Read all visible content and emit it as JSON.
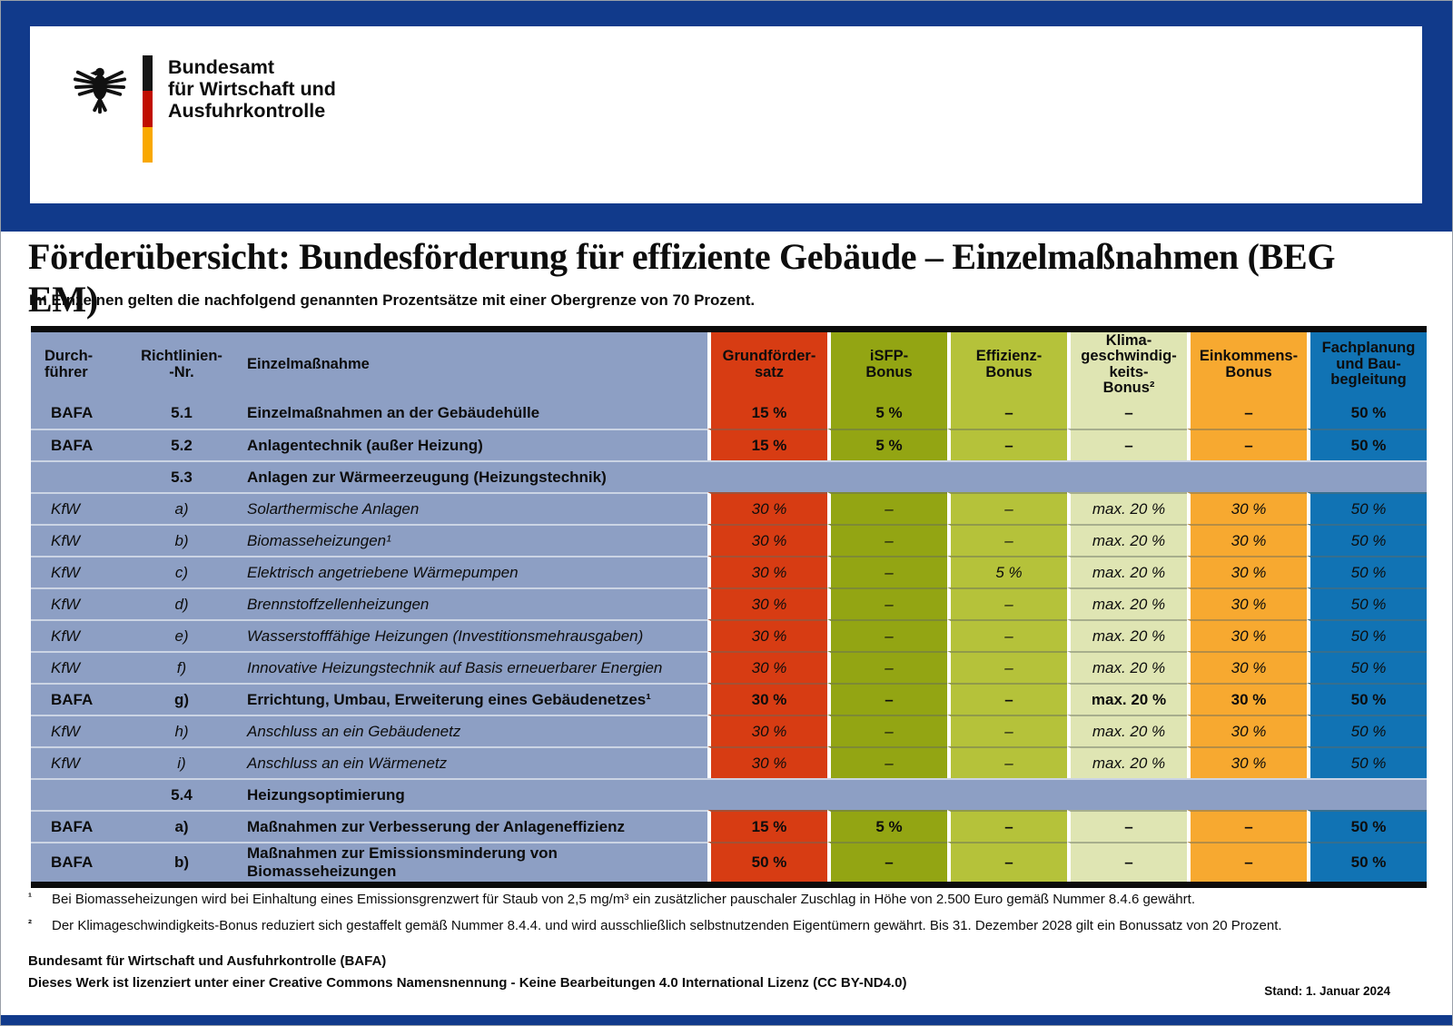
{
  "logo": {
    "line1": "Bundesamt",
    "line2": "für Wirtschaft und",
    "line3": "Ausfuhrkontrolle"
  },
  "title": "Förderübersicht: Bundesförderung für effiziente Gebäude – Einzelmaßnahmen (BEG EM)",
  "subtitle": "Im Einzelnen gelten die nachfolgend genannten Prozentsätze mit einer Obergrenze von 70 Prozent.",
  "colors": {
    "banner_navy": "#113a8b",
    "table_bluegray": "#8d9fc4",
    "grundfoerdersatz_red": "#d73c13",
    "isfp_olive": "#93a513",
    "effizienz_yellowgreen": "#b5c23a",
    "klima_pale": "#dfe5b3",
    "einkommens_orange": "#f7a930",
    "fachplanung_blue": "#1173b4",
    "flag_black": "#161616",
    "flag_red": "#c00d00",
    "flag_gold": "#f9a800"
  },
  "table": {
    "headers": [
      "Durch-\nführer",
      "Richtlinien-\n-Nr.",
      "Einzelmaßnahme",
      "Grundförder-\nsatz",
      "iSFP-\nBonus",
      "Effizienz-\nBonus",
      "Klima-\ngeschwindig-\nkeits-\nBonus²",
      "Einkommens-\nBonus",
      "Fachplanung\nund Bau-\nbegleitung"
    ],
    "rows": [
      {
        "section": false,
        "style": "bold",
        "executor": "BAFA",
        "nr": "5.1",
        "measure": "Einzelmaßnahmen an der Gebäudehülle",
        "values": [
          "15 %",
          "5 %",
          "–",
          "–",
          "–",
          "50 %"
        ]
      },
      {
        "section": false,
        "style": "bold",
        "executor": "BAFA",
        "nr": "5.2",
        "measure": "Anlagentechnik (außer Heizung)",
        "values": [
          "15 %",
          "5 %",
          "–",
          "–",
          "–",
          "50 %"
        ]
      },
      {
        "section": true,
        "style": "bold",
        "executor": "",
        "nr": "5.3",
        "measure": "Anlagen zur Wärmeerzeugung (Heizungstechnik)",
        "values": []
      },
      {
        "section": false,
        "style": "italic",
        "executor": "KfW",
        "nr": "a)",
        "measure": "Solarthermische Anlagen",
        "values": [
          "30 %",
          "–",
          "–",
          "max. 20 %",
          "30 %",
          "50 %"
        ]
      },
      {
        "section": false,
        "style": "italic",
        "executor": "KfW",
        "nr": "b)",
        "measure": "Biomasseheizungen¹",
        "values": [
          "30 %",
          "–",
          "–",
          "max. 20 %",
          "30 %",
          "50 %"
        ]
      },
      {
        "section": false,
        "style": "italic",
        "executor": "KfW",
        "nr": "c)",
        "measure": "Elektrisch angetriebene Wärmepumpen",
        "values": [
          "30 %",
          "–",
          "5 %",
          "max. 20 %",
          "30 %",
          "50 %"
        ]
      },
      {
        "section": false,
        "style": "italic",
        "executor": "KfW",
        "nr": "d)",
        "measure": "Brennstoffzellenheizungen",
        "values": [
          "30 %",
          "–",
          "–",
          "max. 20 %",
          "30 %",
          "50 %"
        ]
      },
      {
        "section": false,
        "style": "italic",
        "executor": "KfW",
        "nr": "e)",
        "measure": "Wasserstofffähige Heizungen (Investitionsmehrausgaben)",
        "values": [
          "30 %",
          "–",
          "–",
          "max. 20 %",
          "30 %",
          "50 %"
        ]
      },
      {
        "section": false,
        "style": "italic",
        "executor": "KfW",
        "nr": "f)",
        "measure": "Innovative Heizungstechnik auf Basis erneuerbarer Energien",
        "values": [
          "30 %",
          "–",
          "–",
          "max. 20 %",
          "30 %",
          "50 %"
        ]
      },
      {
        "section": false,
        "style": "bold",
        "executor": "BAFA",
        "nr": "g)",
        "measure": "Errichtung, Umbau, Erweiterung eines Gebäudenetzes¹",
        "values": [
          "30 %",
          "–",
          "–",
          "max. 20 %",
          "30 %",
          "50 %"
        ]
      },
      {
        "section": false,
        "style": "italic",
        "executor": "KfW",
        "nr": "h)",
        "measure": "Anschluss an ein Gebäudenetz",
        "values": [
          "30 %",
          "–",
          "–",
          "max. 20 %",
          "30 %",
          "50 %"
        ]
      },
      {
        "section": false,
        "style": "italic",
        "executor": "KfW",
        "nr": "i)",
        "measure": "Anschluss an ein Wärmenetz",
        "values": [
          "30 %",
          "–",
          "–",
          "max. 20 %",
          "30 %",
          "50 %"
        ]
      },
      {
        "section": true,
        "style": "bold",
        "executor": "",
        "nr": "5.4",
        "measure": "Heizungsoptimierung",
        "values": []
      },
      {
        "section": false,
        "style": "bold",
        "executor": "BAFA",
        "nr": "a)",
        "measure": "Maßnahmen zur Verbesserung der Anlageneffizienz",
        "values": [
          "15 %",
          "5 %",
          "–",
          "–",
          "–",
          "50 %"
        ]
      },
      {
        "section": false,
        "style": "bold",
        "executor": "BAFA",
        "nr": "b)",
        "measure": "Maßnahmen zur Emissionsminderung von Biomasseheizungen",
        "values": [
          "50 %",
          "–",
          "–",
          "–",
          "–",
          "50 %"
        ]
      }
    ]
  },
  "footnotes": [
    {
      "marker": "¹",
      "text": "Bei Biomasseheizungen wird bei Einhaltung eines Emissionsgrenzwert für Staub von 2,5 mg/m³ ein zusätzlicher pauschaler Zuschlag in Höhe von 2.500 Euro gemäß Nummer 8.4.6 gewährt."
    },
    {
      "marker": "²",
      "text": "Der Klimageschwindigkeits-Bonus reduziert sich gestaffelt gemäß Nummer 8.4.4. und wird ausschließlich selbstnutzenden Eigentümern gewährt. Bis 31. Dezember 2028 gilt ein Bonussatz von 20 Prozent."
    }
  ],
  "footer": {
    "line1": "Bundesamt für Wirtschaft und Ausfuhrkontrolle (BAFA)",
    "line2": "Dieses Werk ist lizenziert unter einer Creative Commons Namensnennung - Keine Bearbeitungen 4.0 International Lizenz (CC BY-ND4.0)",
    "stand": "Stand: 1. Januar 2024"
  }
}
